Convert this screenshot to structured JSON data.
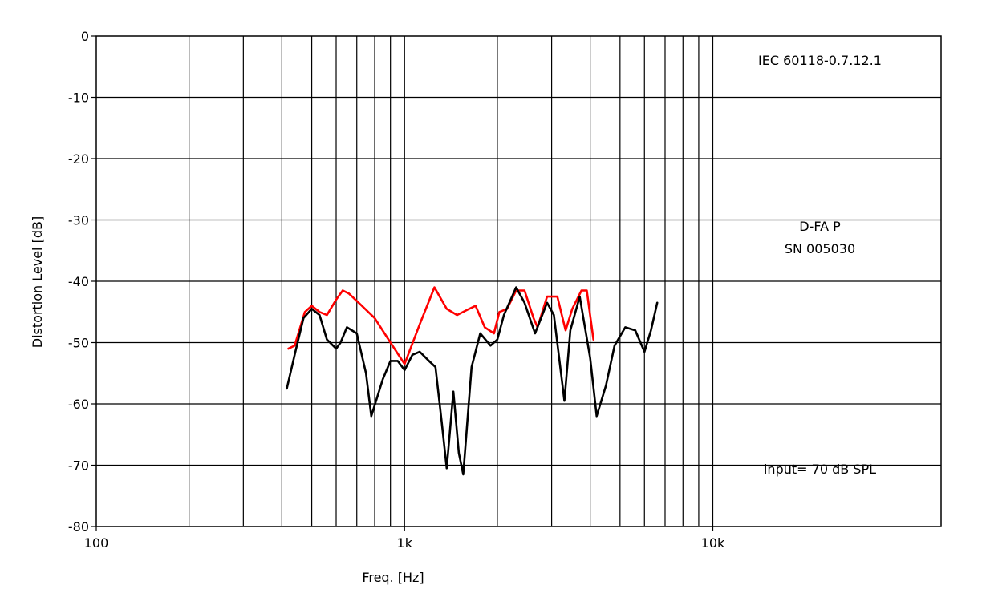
{
  "chart_data": {
    "type": "line",
    "title": "",
    "xlabel": "Freq. [Hz]",
    "ylabel": "Distortion Level [dB]",
    "xscale": "log",
    "xlim": [
      100,
      55000
    ],
    "ylim": [
      -80,
      0
    ],
    "grid": true,
    "x_ticks": [
      {
        "value": 100,
        "label": "100"
      },
      {
        "value": 1000,
        "label": "1k"
      },
      {
        "value": 10000,
        "label": "10k"
      }
    ],
    "y_ticks": [
      {
        "value": 0,
        "label": "0"
      },
      {
        "value": -10,
        "label": "-10"
      },
      {
        "value": -20,
        "label": "-20"
      },
      {
        "value": -30,
        "label": "-30"
      },
      {
        "value": -40,
        "label": "-40"
      },
      {
        "value": -50,
        "label": "-50"
      },
      {
        "value": -60,
        "label": "-60"
      },
      {
        "value": -70,
        "label": "-70"
      },
      {
        "value": -80,
        "label": "-80"
      }
    ],
    "annotations": [
      {
        "text": "IEC 60118-0.7.12.1",
        "position": "top-right"
      },
      {
        "text": "D-FA P",
        "position": "middle-right"
      },
      {
        "text": "SN 005030",
        "position": "middle-right"
      },
      {
        "text": "input= 70 dB SPL",
        "position": "bottom-right"
      }
    ],
    "series": [
      {
        "color": "#ff0000",
        "points": [
          [
            420,
            -51
          ],
          [
            440,
            -50.5
          ],
          [
            475,
            -45
          ],
          [
            500,
            -44
          ],
          [
            530,
            -45
          ],
          [
            560,
            -45.5
          ],
          [
            600,
            -43
          ],
          [
            630,
            -41.5
          ],
          [
            660,
            -42
          ],
          [
            710,
            -43.5
          ],
          [
            800,
            -46
          ],
          [
            900,
            -50
          ],
          [
            1000,
            -53.5
          ],
          [
            1120,
            -47
          ],
          [
            1250,
            -41
          ],
          [
            1370,
            -44.5
          ],
          [
            1480,
            -45.5
          ],
          [
            1620,
            -44.5
          ],
          [
            1700,
            -44
          ],
          [
            1820,
            -47.5
          ],
          [
            1950,
            -48.5
          ],
          [
            2030,
            -45
          ],
          [
            2150,
            -44.5
          ],
          [
            2300,
            -41.5
          ],
          [
            2450,
            -41.5
          ],
          [
            2620,
            -46
          ],
          [
            2700,
            -47.5
          ],
          [
            2900,
            -42.5
          ],
          [
            3130,
            -42.5
          ],
          [
            3200,
            -44.5
          ],
          [
            3330,
            -48
          ],
          [
            3500,
            -44.5
          ],
          [
            3750,
            -41.5
          ],
          [
            3900,
            -41.5
          ],
          [
            4100,
            -49.5
          ]
        ]
      },
      {
        "color": "#000000",
        "points": [
          [
            415,
            -57.5
          ],
          [
            445,
            -51
          ],
          [
            470,
            -46
          ],
          [
            500,
            -44.5
          ],
          [
            530,
            -45.5
          ],
          [
            560,
            -49.5
          ],
          [
            600,
            -51
          ],
          [
            620,
            -50
          ],
          [
            650,
            -47.5
          ],
          [
            700,
            -48.5
          ],
          [
            750,
            -55
          ],
          [
            780,
            -62
          ],
          [
            850,
            -56
          ],
          [
            900,
            -53
          ],
          [
            950,
            -53
          ],
          [
            1000,
            -54.5
          ],
          [
            1060,
            -52
          ],
          [
            1120,
            -51.5
          ],
          [
            1200,
            -53
          ],
          [
            1260,
            -54
          ],
          [
            1320,
            -63
          ],
          [
            1370,
            -70.5
          ],
          [
            1440,
            -58
          ],
          [
            1500,
            -68
          ],
          [
            1550,
            -71.5
          ],
          [
            1650,
            -54
          ],
          [
            1760,
            -48.5
          ],
          [
            1900,
            -50.5
          ],
          [
            2000,
            -49.5
          ],
          [
            2100,
            -45.5
          ],
          [
            2300,
            -41
          ],
          [
            2450,
            -43.5
          ],
          [
            2650,
            -48.5
          ],
          [
            2900,
            -43.5
          ],
          [
            3050,
            -45.5
          ],
          [
            3300,
            -59.5
          ],
          [
            3450,
            -48
          ],
          [
            3700,
            -42.5
          ],
          [
            4000,
            -52.5
          ],
          [
            4200,
            -62
          ],
          [
            4500,
            -57
          ],
          [
            4800,
            -50.5
          ],
          [
            5200,
            -47.5
          ],
          [
            5600,
            -48
          ],
          [
            6000,
            -51.5
          ],
          [
            6300,
            -48
          ],
          [
            6600,
            -43.5
          ]
        ]
      }
    ]
  }
}
